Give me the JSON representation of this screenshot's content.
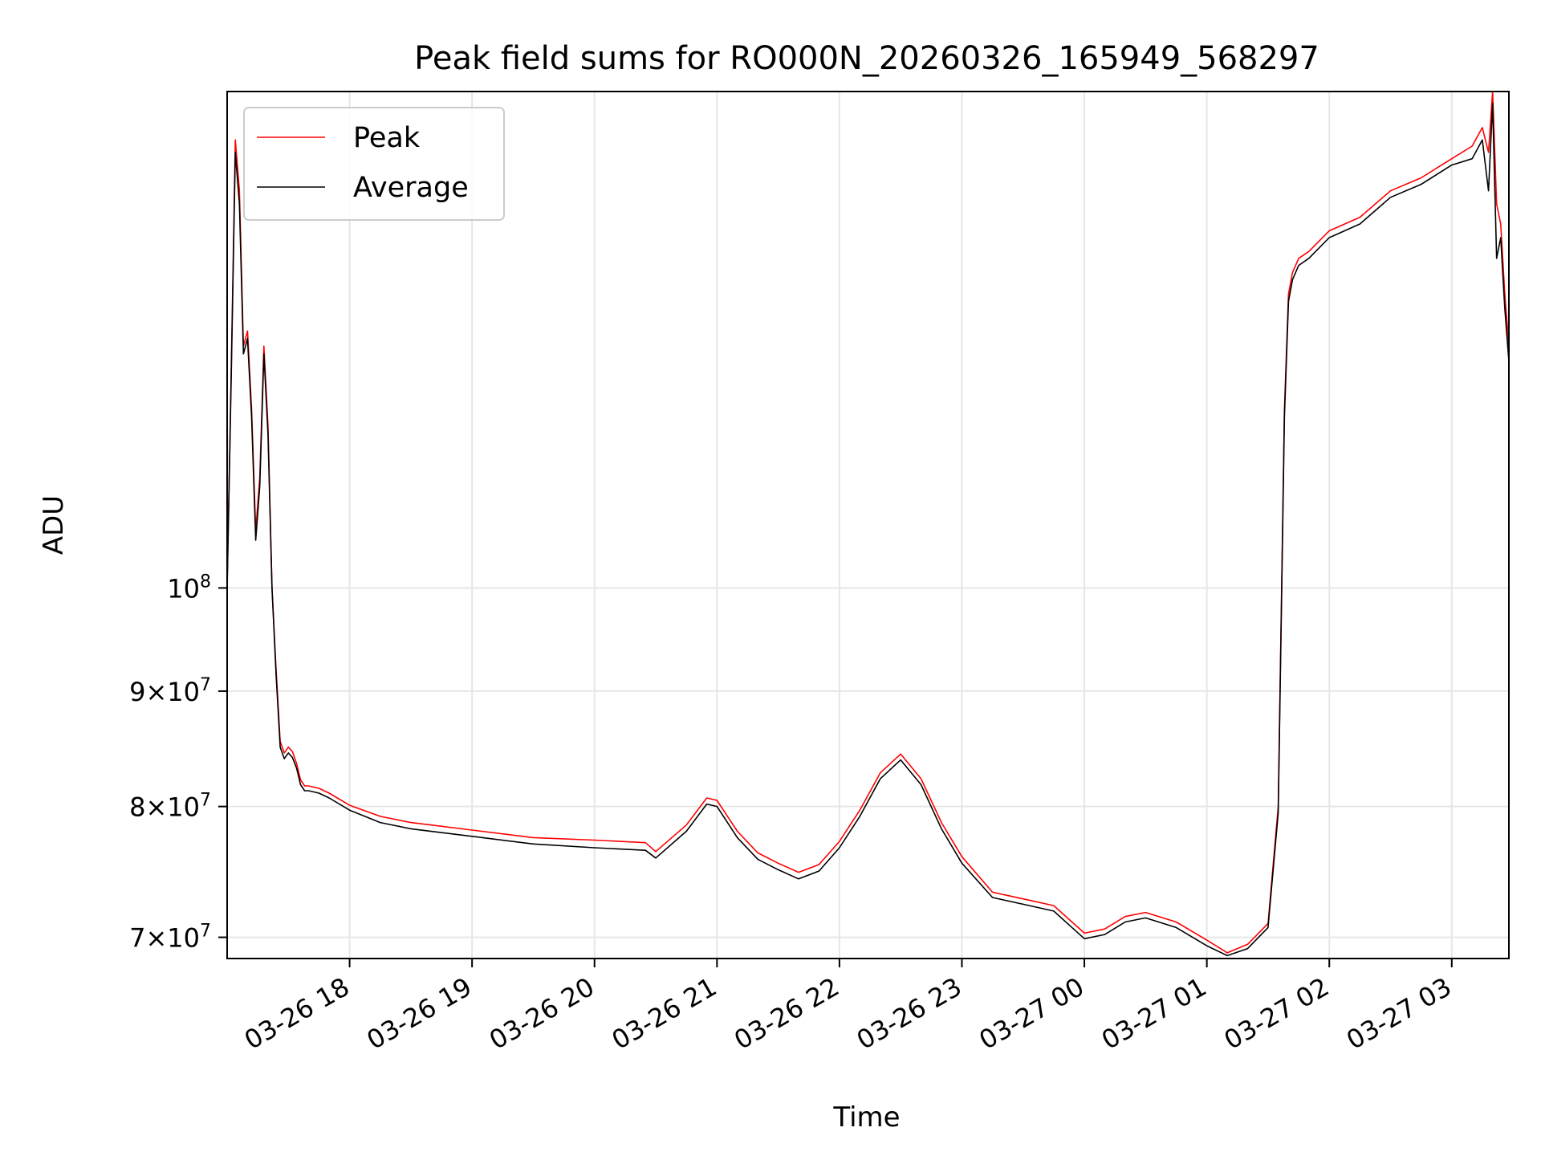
{
  "chart_data": {
    "type": "line",
    "title": "Peak field sums for RO000N_20260326_165949_568297",
    "xlabel": "Time",
    "ylabel": "ADU",
    "xlim": [
      "03-26 17:00",
      "03-27 03:28"
    ],
    "ylim": [
      68500000,
      166000000
    ],
    "yscale": "log",
    "grid": true,
    "legend": "top-left",
    "x_ticks": [
      "03-26 18",
      "03-26 19",
      "03-26 20",
      "03-26 21",
      "03-26 22",
      "03-26 23",
      "03-27 00",
      "03-27 01",
      "03-27 02",
      "03-27 03"
    ],
    "y_ticks": [
      {
        "value": 70000000,
        "mantissa": "7",
        "exp": "7"
      },
      {
        "value": 80000000,
        "mantissa": "8",
        "exp": "7"
      },
      {
        "value": 90000000,
        "mantissa": "9",
        "exp": "7"
      },
      {
        "value": 100000000,
        "mantissa": "",
        "exp": "8"
      }
    ],
    "tick_base": "10",
    "tick_times": "×",
    "series": [
      {
        "name": "Peak",
        "color": "#ff0000",
        "x": [
          "03-26 17:00",
          "03-26 17:02",
          "03-26 17:04",
          "03-26 17:06",
          "03-26 17:08",
          "03-26 17:10",
          "03-26 17:12",
          "03-26 17:14",
          "03-26 17:16",
          "03-26 17:18",
          "03-26 17:20",
          "03-26 17:22",
          "03-26 17:24",
          "03-26 17:26",
          "03-26 17:28",
          "03-26 17:30",
          "03-26 17:32",
          "03-26 17:34",
          "03-26 17:36",
          "03-26 17:38",
          "03-26 17:40",
          "03-26 17:45",
          "03-26 17:50",
          "03-26 18:00",
          "03-26 18:15",
          "03-26 18:30",
          "03-26 19:00",
          "03-26 19:30",
          "03-26 20:00",
          "03-26 20:25",
          "03-26 20:30",
          "03-26 20:45",
          "03-26 20:55",
          "03-26 21:00",
          "03-26 21:10",
          "03-26 21:20",
          "03-26 21:30",
          "03-26 21:40",
          "03-26 21:50",
          "03-26 22:00",
          "03-26 22:10",
          "03-26 22:20",
          "03-26 22:30",
          "03-26 22:40",
          "03-26 22:50",
          "03-26 23:00",
          "03-26 23:15",
          "03-26 23:30",
          "03-26 23:45",
          "03-27 00:00",
          "03-27 00:10",
          "03-27 00:20",
          "03-27 00:30",
          "03-27 00:45",
          "03-27 01:00",
          "03-27 01:10",
          "03-27 01:20",
          "03-27 01:30",
          "03-27 01:35",
          "03-27 01:38",
          "03-27 01:40",
          "03-27 01:42",
          "03-27 01:45",
          "03-27 01:50",
          "03-27 02:00",
          "03-27 02:15",
          "03-27 02:30",
          "03-27 02:45",
          "03-27 03:00",
          "03-27 03:10",
          "03-27 03:15",
          "03-27 03:18",
          "03-27 03:20",
          "03-27 03:22",
          "03-27 03:24",
          "03-27 03:26",
          "03-27 03:28"
        ],
        "values": [
          100000000,
          125000000,
          158000000,
          150000000,
          128000000,
          130000000,
          120000000,
          106000000,
          112000000,
          128000000,
          118000000,
          100000000,
          92000000,
          85500000,
          84500000,
          85000000,
          84600000,
          83600000,
          82200000,
          81700000,
          81700000,
          81500000,
          81100000,
          80100000,
          79200000,
          78700000,
          78100000,
          77500000,
          77300000,
          77100000,
          76400000,
          78500000,
          80700000,
          80500000,
          78000000,
          76300000,
          75500000,
          74800000,
          75400000,
          77200000,
          79700000,
          82800000,
          84400000,
          82300000,
          78700000,
          76000000,
          73300000,
          72800000,
          72300000,
          70300000,
          70600000,
          71500000,
          71800000,
          71100000,
          69800000,
          68900000,
          69500000,
          71000000,
          80000000,
          120000000,
          135000000,
          138000000,
          140000000,
          141000000,
          144000000,
          146000000,
          150000000,
          152000000,
          155000000,
          157000000,
          160000000,
          156000000,
          166000000,
          148000000,
          145000000,
          135000000,
          128000000
        ]
      },
      {
        "name": "Average",
        "color": "#000000",
        "x": [
          "03-26 17:00",
          "03-26 17:02",
          "03-26 17:04",
          "03-26 17:06",
          "03-26 17:08",
          "03-26 17:10",
          "03-26 17:12",
          "03-26 17:14",
          "03-26 17:16",
          "03-26 17:18",
          "03-26 17:20",
          "03-26 17:22",
          "03-26 17:24",
          "03-26 17:26",
          "03-26 17:28",
          "03-26 17:30",
          "03-26 17:32",
          "03-26 17:34",
          "03-26 17:36",
          "03-26 17:38",
          "03-26 17:40",
          "03-26 17:45",
          "03-26 17:50",
          "03-26 18:00",
          "03-26 18:15",
          "03-26 18:30",
          "03-26 19:00",
          "03-26 19:30",
          "03-26 20:00",
          "03-26 20:25",
          "03-26 20:30",
          "03-26 20:45",
          "03-26 20:55",
          "03-26 21:00",
          "03-26 21:10",
          "03-26 21:20",
          "03-26 21:30",
          "03-26 21:40",
          "03-26 21:50",
          "03-26 22:00",
          "03-26 22:10",
          "03-26 22:20",
          "03-26 22:30",
          "03-26 22:40",
          "03-26 22:50",
          "03-26 23:00",
          "03-26 23:15",
          "03-26 23:30",
          "03-26 23:45",
          "03-27 00:00",
          "03-27 00:10",
          "03-27 00:20",
          "03-27 00:30",
          "03-27 00:45",
          "03-27 01:00",
          "03-27 01:10",
          "03-27 01:20",
          "03-27 01:30",
          "03-27 01:35",
          "03-27 01:38",
          "03-27 01:40",
          "03-27 01:42",
          "03-27 01:45",
          "03-27 01:50",
          "03-27 02:00",
          "03-27 02:15",
          "03-27 02:30",
          "03-27 02:45",
          "03-27 03:00",
          "03-27 03:10",
          "03-27 03:15",
          "03-27 03:18",
          "03-27 03:20",
          "03-27 03:22",
          "03-27 03:24",
          "03-27 03:26",
          "03-27 03:28"
        ],
        "values": [
          100000000,
          124000000,
          156000000,
          148000000,
          127000000,
          129000000,
          119000000,
          105000000,
          111000000,
          127000000,
          117000000,
          100000000,
          91500000,
          85000000,
          84000000,
          84500000,
          84100000,
          83200000,
          81800000,
          81300000,
          81300000,
          81100000,
          80700000,
          79700000,
          78700000,
          78200000,
          77600000,
          77000000,
          76700000,
          76500000,
          75900000,
          78000000,
          80200000,
          80000000,
          77500000,
          75800000,
          75000000,
          74300000,
          74900000,
          76700000,
          79200000,
          82300000,
          83900000,
          81800000,
          78200000,
          75500000,
          72900000,
          72400000,
          71900000,
          69900000,
          70200000,
          71100000,
          71400000,
          70700000,
          69400000,
          68700000,
          69200000,
          70700000,
          79500000,
          119000000,
          134000000,
          137000000,
          139000000,
          140000000,
          143000000,
          145000000,
          149000000,
          151000000,
          154000000,
          155000000,
          158000000,
          150000000,
          164000000,
          140000000,
          143000000,
          133000000,
          126000000
        ]
      }
    ]
  }
}
